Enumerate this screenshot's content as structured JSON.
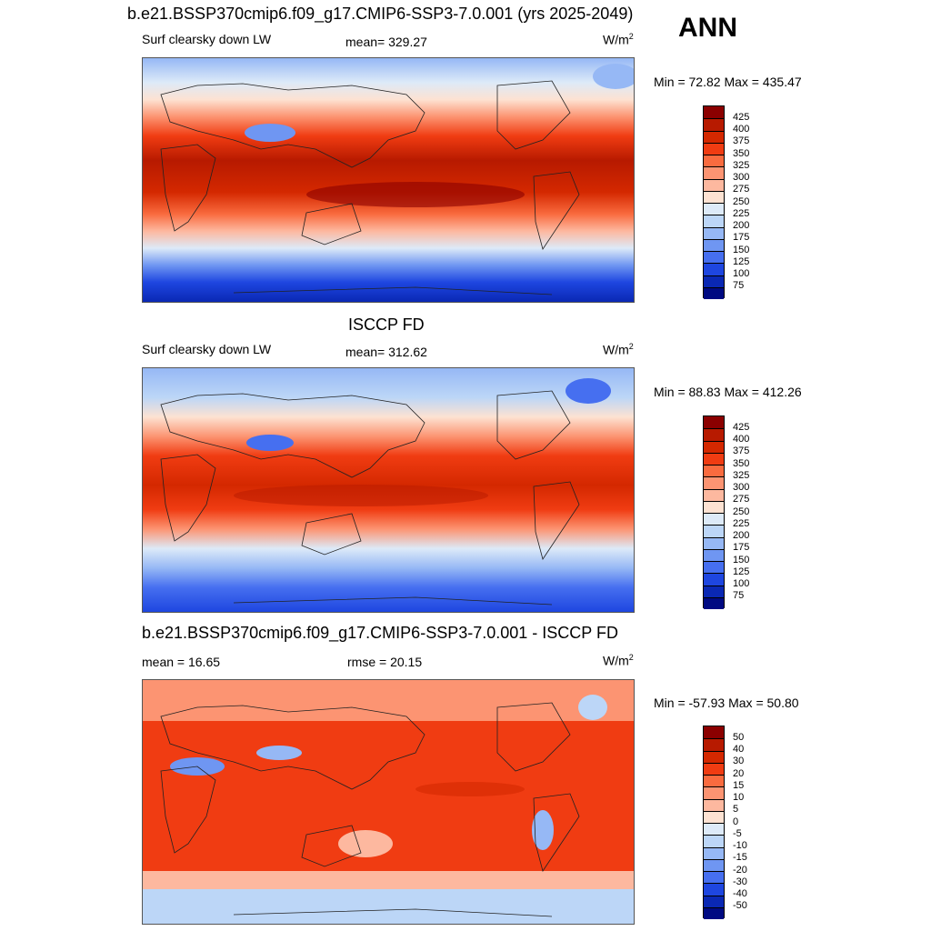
{
  "header": {
    "title": "b.e21.BSSP370cmip6.f09_g17.CMIP6-SSP3-7.0.001 (yrs 2025-2049)",
    "season": "ANN"
  },
  "panels": [
    {
      "id": "model",
      "heading": "",
      "left_label": "Surf clearsky down LW",
      "center_label": "mean= 329.27",
      "unit_base": "W/m",
      "unit_sup": "2",
      "range_text": "Min =  72.82 Max = 435.47",
      "levels": [
        "425",
        "400",
        "375",
        "350",
        "325",
        "300",
        "275",
        "250",
        "225",
        "200",
        "175",
        "150",
        "125",
        "100",
        "75"
      ],
      "colors": [
        "#8b0000",
        "#b71a00",
        "#d42800",
        "#f03c12",
        "#f96b3f",
        "#fc9472",
        "#fdb89f",
        "#fde2d2",
        "#ddeaf8",
        "#bcd6f7",
        "#96b8f5",
        "#6f96f2",
        "#466ff0",
        "#1e46e0",
        "#0a28b4",
        "#000a82"
      ]
    },
    {
      "id": "obs",
      "heading": "ISCCP FD",
      "left_label": "Surf clearsky down LW",
      "center_label": "mean= 312.62",
      "unit_base": "W/m",
      "unit_sup": "2",
      "range_text": "Min =  88.83 Max = 412.26",
      "levels": [
        "425",
        "400",
        "375",
        "350",
        "325",
        "300",
        "275",
        "250",
        "225",
        "200",
        "175",
        "150",
        "125",
        "100",
        "75"
      ],
      "colors": [
        "#8b0000",
        "#b71a00",
        "#d42800",
        "#f03c12",
        "#f96b3f",
        "#fc9472",
        "#fdb89f",
        "#fde2d2",
        "#ddeaf8",
        "#bcd6f7",
        "#96b8f5",
        "#6f96f2",
        "#466ff0",
        "#1e46e0",
        "#0a28b4",
        "#000a82"
      ]
    },
    {
      "id": "diff",
      "heading": "b.e21.BSSP370cmip6.f09_g17.CMIP6-SSP3-7.0.001 - ISCCP FD",
      "left_label": "mean =  16.65",
      "center_label": "rmse =  20.15",
      "unit_base": "W/m",
      "unit_sup": "2",
      "range_text": "Min = -57.93 Max =  50.80",
      "levels": [
        "50",
        "40",
        "30",
        "20",
        "15",
        "10",
        "5",
        "0",
        "-5",
        "-10",
        "-15",
        "-20",
        "-30",
        "-40",
        "-50"
      ],
      "colors": [
        "#8b0000",
        "#b71a00",
        "#d42800",
        "#f03c12",
        "#f96b3f",
        "#fc9472",
        "#fdb89f",
        "#fde2d2",
        "#ddeaf8",
        "#bcd6f7",
        "#96b8f5",
        "#6f96f2",
        "#466ff0",
        "#1e46e0",
        "#0a28b4",
        "#000a82"
      ]
    }
  ]
}
